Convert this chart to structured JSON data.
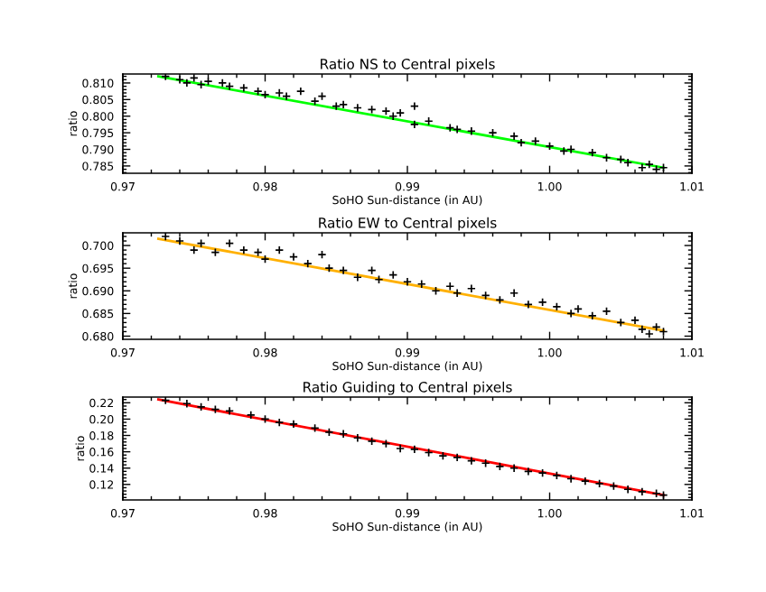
{
  "chart_data": [
    {
      "type": "scatter",
      "title": "Ratio NS to Central pixels",
      "xlabel": "SoHO Sun-distance (in AU)",
      "ylabel": "ratio",
      "xlim": [
        0.97,
        1.01
      ],
      "xticks": [
        {
          "value": 0.97,
          "label": "0.97"
        },
        {
          "value": 0.98,
          "label": "0.98"
        },
        {
          "value": 0.99,
          "label": "0.99"
        },
        {
          "value": 1.0,
          "label": "1.00"
        },
        {
          "value": 1.01,
          "label": "1.01"
        }
      ],
      "ylim": [
        0.7828,
        0.8127
      ],
      "yticks": [
        {
          "value": 0.785,
          "label": "0.785"
        },
        {
          "value": 0.79,
          "label": "0.790"
        },
        {
          "value": 0.795,
          "label": "0.795"
        },
        {
          "value": 0.8,
          "label": "0.800"
        },
        {
          "value": 0.805,
          "label": "0.805"
        },
        {
          "value": 0.81,
          "label": "0.810"
        }
      ],
      "grid": false,
      "legend": false,
      "series": [
        {
          "marker": "cross",
          "color": "#000000",
          "x": [
            0.973,
            0.974,
            0.9745,
            0.975,
            0.9755,
            0.976,
            0.977,
            0.9775,
            0.9785,
            0.9795,
            0.98,
            0.981,
            0.9815,
            0.9825,
            0.9835,
            0.984,
            0.985,
            0.9855,
            0.9865,
            0.9875,
            0.9885,
            0.989,
            0.9895,
            0.9905,
            0.9905,
            0.9915,
            0.993,
            0.9935,
            0.9945,
            0.996,
            0.9975,
            0.998,
            0.999,
            1.0,
            1.001,
            1.0015,
            1.003,
            1.004,
            1.005,
            1.0055,
            1.0065,
            1.007,
            1.0075,
            1.008
          ],
          "values": [
            0.812,
            0.811,
            0.81,
            0.8115,
            0.8095,
            0.8105,
            0.81,
            0.809,
            0.8085,
            0.8075,
            0.8065,
            0.807,
            0.806,
            0.8075,
            0.8045,
            0.806,
            0.803,
            0.8035,
            0.8025,
            0.802,
            0.8015,
            0.8,
            0.801,
            0.803,
            0.7975,
            0.7985,
            0.7965,
            0.796,
            0.7955,
            0.795,
            0.794,
            0.792,
            0.7925,
            0.791,
            0.7895,
            0.79,
            0.789,
            0.7875,
            0.787,
            0.786,
            0.7845,
            0.7855,
            0.784,
            0.7845
          ]
        },
        {
          "type": "line",
          "color": "#00ff00",
          "x": [
            0.9725,
            1.008
          ],
          "values": [
            0.812,
            0.7845
          ]
        }
      ]
    },
    {
      "type": "scatter",
      "title": "Ratio EW to Central pixels",
      "xlabel": "SoHO Sun-distance (in AU)",
      "ylabel": "ratio",
      "xlim": [
        0.97,
        1.01
      ],
      "xticks": [
        {
          "value": 0.97,
          "label": "0.97"
        },
        {
          "value": 0.98,
          "label": "0.98"
        },
        {
          "value": 0.99,
          "label": "0.99"
        },
        {
          "value": 1.0,
          "label": "1.00"
        },
        {
          "value": 1.01,
          "label": "1.01"
        }
      ],
      "ylim": [
        0.6793,
        0.7028
      ],
      "yticks": [
        {
          "value": 0.68,
          "label": "0.680"
        },
        {
          "value": 0.685,
          "label": "0.685"
        },
        {
          "value": 0.69,
          "label": "0.690"
        },
        {
          "value": 0.695,
          "label": "0.695"
        },
        {
          "value": 0.7,
          "label": "0.700"
        }
      ],
      "grid": false,
      "legend": false,
      "series": [
        {
          "marker": "cross",
          "color": "#000000",
          "x": [
            0.973,
            0.974,
            0.975,
            0.9755,
            0.9765,
            0.9775,
            0.9785,
            0.9795,
            0.98,
            0.981,
            0.982,
            0.983,
            0.984,
            0.9845,
            0.9855,
            0.9865,
            0.9875,
            0.988,
            0.989,
            0.99,
            0.991,
            0.992,
            0.993,
            0.9935,
            0.9945,
            0.9955,
            0.9965,
            0.9975,
            0.9985,
            0.9995,
            1.0005,
            1.0015,
            1.002,
            1.003,
            1.004,
            1.005,
            1.006,
            1.0065,
            1.007,
            1.0075,
            1.008
          ],
          "values": [
            0.702,
            0.701,
            0.699,
            0.7005,
            0.6985,
            0.7005,
            0.699,
            0.6985,
            0.697,
            0.699,
            0.6975,
            0.696,
            0.698,
            0.695,
            0.6945,
            0.693,
            0.6945,
            0.6925,
            0.6935,
            0.692,
            0.6915,
            0.69,
            0.691,
            0.6895,
            0.6905,
            0.689,
            0.688,
            0.6895,
            0.687,
            0.6875,
            0.6865,
            0.685,
            0.686,
            0.6845,
            0.6855,
            0.683,
            0.6835,
            0.6815,
            0.6805,
            0.682,
            0.681
          ]
        },
        {
          "type": "line",
          "color": "#ffb000",
          "x": [
            0.9725,
            1.008
          ],
          "values": [
            0.7015,
            0.6812
          ]
        }
      ]
    },
    {
      "type": "scatter",
      "title": "Ratio Guiding to Central pixels",
      "xlabel": "SoHO Sun-distance (in AU)",
      "ylabel": "ratio",
      "xlim": [
        0.97,
        1.01
      ],
      "xticks": [
        {
          "value": 0.97,
          "label": "0.97"
        },
        {
          "value": 0.98,
          "label": "0.98"
        },
        {
          "value": 0.99,
          "label": "0.99"
        },
        {
          "value": 1.0,
          "label": "1.00"
        },
        {
          "value": 1.01,
          "label": "1.01"
        }
      ],
      "ylim": [
        0.101,
        0.227
      ],
      "yticks": [
        {
          "value": 0.12,
          "label": "0.12"
        },
        {
          "value": 0.14,
          "label": "0.14"
        },
        {
          "value": 0.16,
          "label": "0.16"
        },
        {
          "value": 0.18,
          "label": "0.18"
        },
        {
          "value": 0.2,
          "label": "0.20"
        },
        {
          "value": 0.22,
          "label": "0.22"
        }
      ],
      "grid": false,
      "legend": false,
      "series": [
        {
          "marker": "cross",
          "color": "#000000",
          "x": [
            0.973,
            0.9745,
            0.9755,
            0.9765,
            0.9775,
            0.979,
            0.98,
            0.981,
            0.982,
            0.9835,
            0.9845,
            0.9855,
            0.9865,
            0.9875,
            0.9885,
            0.9895,
            0.9905,
            0.9915,
            0.9925,
            0.9935,
            0.9945,
            0.9955,
            0.9965,
            0.9975,
            0.9985,
            0.9995,
            1.0005,
            1.0015,
            1.0025,
            1.0035,
            1.0045,
            1.0055,
            1.0065,
            1.0075,
            1.008
          ],
          "values": [
            0.223,
            0.219,
            0.215,
            0.212,
            0.21,
            0.205,
            0.2,
            0.196,
            0.194,
            0.189,
            0.184,
            0.182,
            0.177,
            0.173,
            0.17,
            0.164,
            0.163,
            0.159,
            0.155,
            0.153,
            0.149,
            0.146,
            0.142,
            0.14,
            0.136,
            0.134,
            0.131,
            0.127,
            0.124,
            0.121,
            0.118,
            0.114,
            0.111,
            0.109,
            0.107
          ]
        },
        {
          "type": "line",
          "color": "#ff0000",
          "x": [
            0.9725,
            1.008
          ],
          "values": [
            0.224,
            0.107
          ]
        }
      ]
    }
  ]
}
